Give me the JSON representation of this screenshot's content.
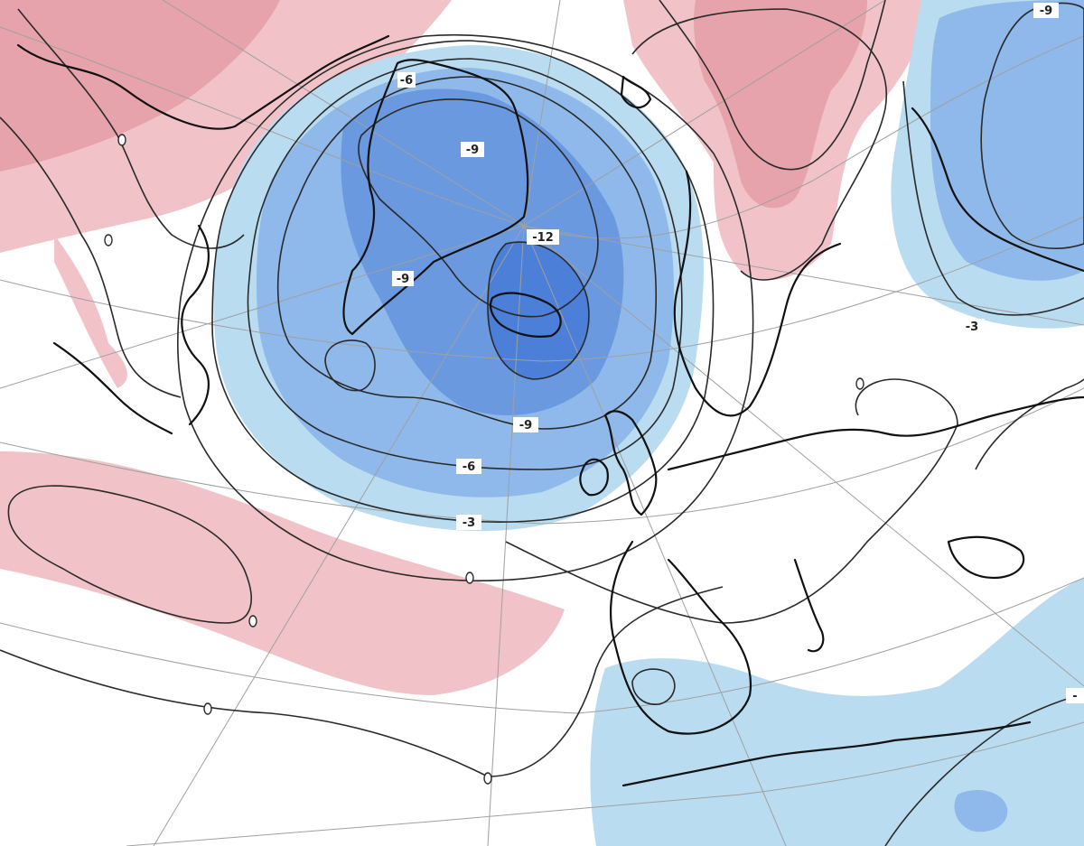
{
  "map": {
    "type": "anomaly-contour-map",
    "projection": "polar-stereographic",
    "region": "North Atlantic and Europe",
    "colors": {
      "positive": "#e8a0a8",
      "negative_weak": "#aed6ee",
      "negative_mid": "#7fb0e6",
      "negative_strong": "#4a7fd6",
      "contour_line": "#2a2a2a",
      "coastline": "#111111",
      "graticule": "#a0a0a0"
    },
    "contour_labels": [
      {
        "id": "greenland-n",
        "text": "-6"
      },
      {
        "id": "greenland-c",
        "text": "-9"
      },
      {
        "id": "iceland-n",
        "text": "-12"
      },
      {
        "id": "greenland-s",
        "text": "-9"
      },
      {
        "id": "atlantic-9",
        "text": "-9"
      },
      {
        "id": "atlantic-6",
        "text": "-6"
      },
      {
        "id": "atlantic-3",
        "text": "-3"
      },
      {
        "id": "russia-3",
        "text": "-3"
      },
      {
        "id": "siberia-9",
        "text": "-9"
      },
      {
        "id": "east-edge",
        "text": "-"
      }
    ]
  }
}
